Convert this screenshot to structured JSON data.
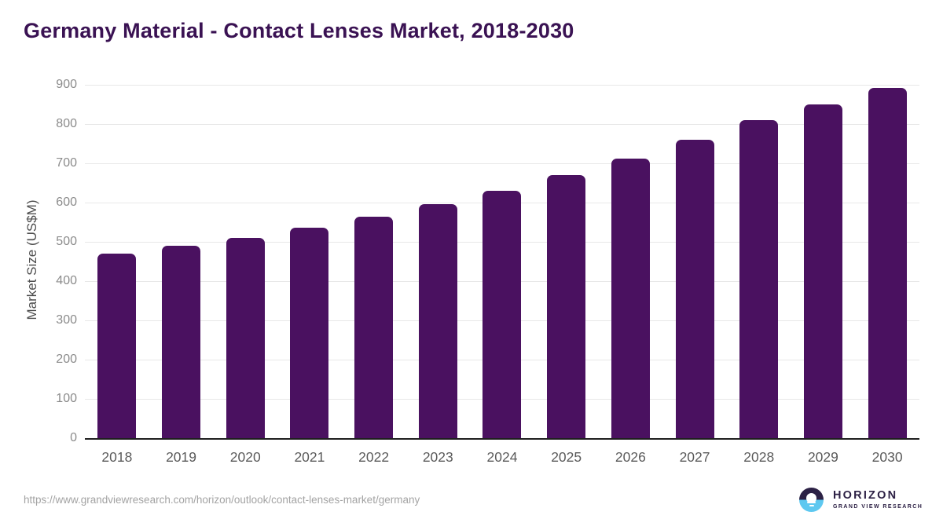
{
  "header": {
    "title": "Germany Material - Contact Lenses Market, 2018-2030"
  },
  "chart_data": {
    "type": "bar",
    "title": "Germany Material - Contact Lenses Market, 2018-2030",
    "categories": [
      "2018",
      "2019",
      "2020",
      "2021",
      "2022",
      "2023",
      "2024",
      "2025",
      "2026",
      "2027",
      "2028",
      "2029",
      "2030"
    ],
    "values": [
      471,
      490,
      510,
      537,
      565,
      597,
      631,
      670,
      713,
      760,
      810,
      850,
      893
    ],
    "xlabel": "",
    "ylabel": "Market Size (US$M)",
    "ylim": [
      0,
      900
    ],
    "ytick_step": 100,
    "grid": "horizontal-only",
    "legend_position": "none"
  },
  "footer": {
    "source_url": "https://www.grandviewresearch.com/horizon/outlook/contact-lenses-market/germany",
    "logo": {
      "name": "HORIZON",
      "subtitle": "GRAND VIEW RESEARCH"
    }
  },
  "colors": {
    "title": "#3a1253",
    "bar": "#4a1160",
    "grid": "#e8e8e8",
    "axis_line": "#1f1f1f",
    "y_tick_label": "#8b8b8b",
    "x_tick_label": "#5a5a5a",
    "y_axis_title": "#4d4d4d",
    "source_url": "#a3a3a3",
    "logo_dark": "#2d2145",
    "logo_blue": "#5ec8f0"
  }
}
